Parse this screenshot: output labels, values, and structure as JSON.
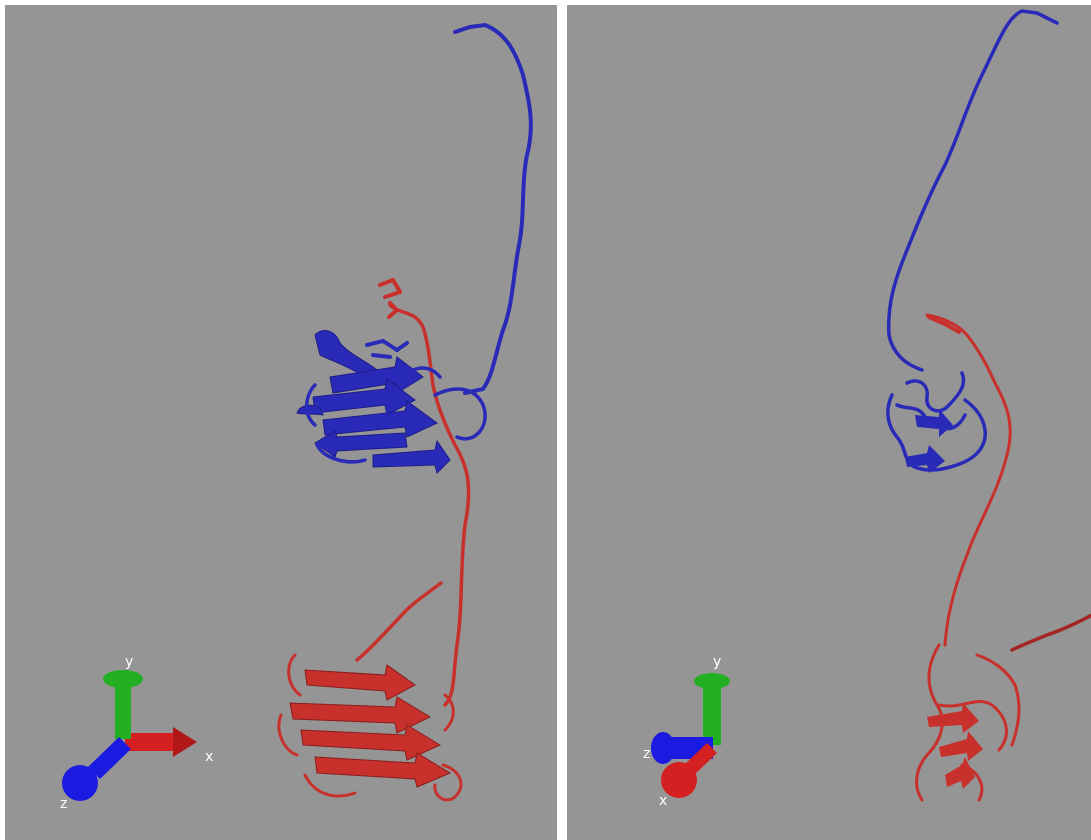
{
  "panels": [
    {
      "id": "left",
      "axes": {
        "y_label": "y",
        "x_label": "x",
        "z_label": "z"
      }
    },
    {
      "id": "right",
      "axes": {
        "y_label": "y",
        "x_label": "x",
        "z_label": "z"
      }
    }
  ],
  "colors": {
    "background": "#959595",
    "chain_blue": "#2a2ab8",
    "chain_red": "#c8302c",
    "axis_x": "#d42020",
    "axis_y": "#22b022",
    "axis_z": "#1a1ae0",
    "label": "#ffffff"
  }
}
